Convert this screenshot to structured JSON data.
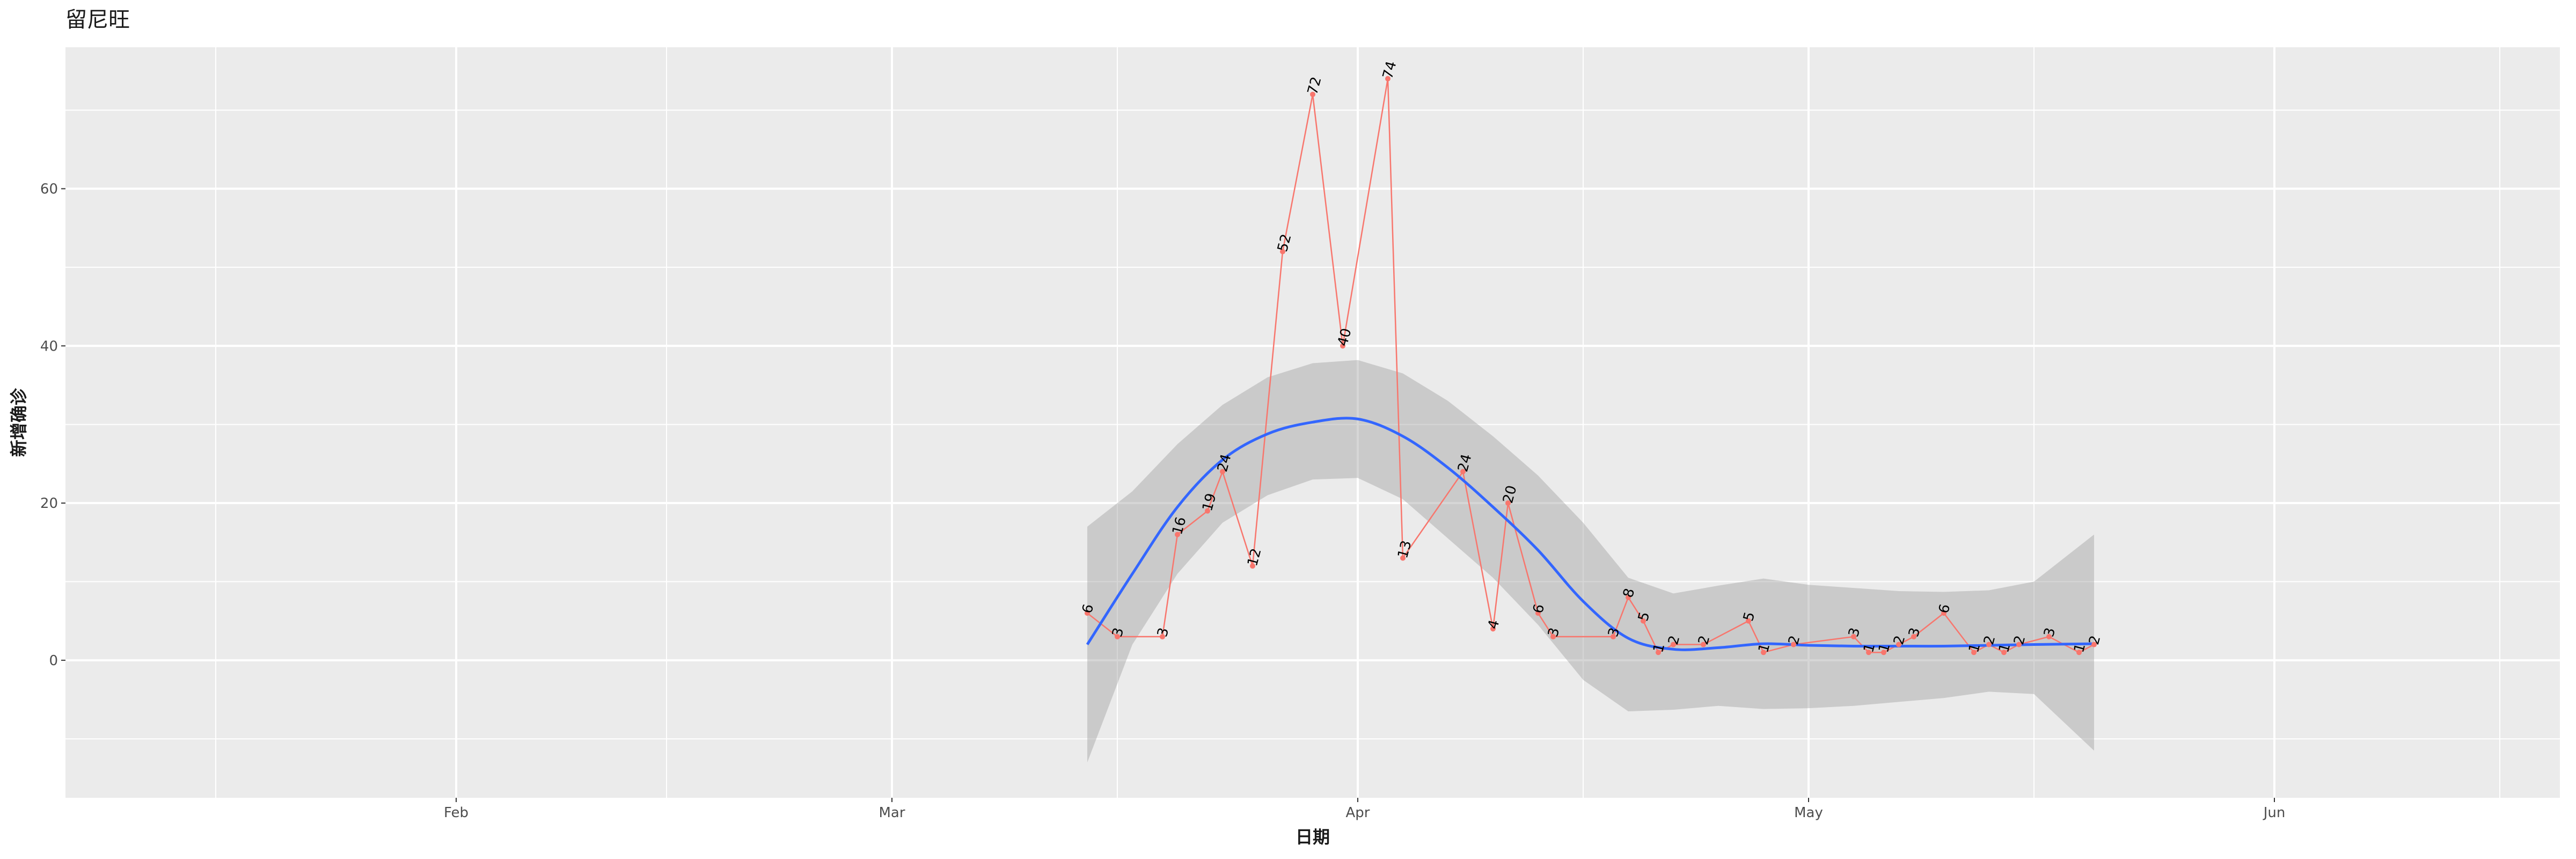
{
  "chart_data": {
    "type": "line",
    "title": "留尼旺",
    "xlabel": "日期",
    "ylabel": "新增确诊",
    "x_range": [
      "2020-01-06",
      "2020-06-20"
    ],
    "y_range": [
      -17.5,
      78
    ],
    "x_ticks": [
      {
        "date": "2020-02-01",
        "label": "Feb"
      },
      {
        "date": "2020-03-01",
        "label": "Mar"
      },
      {
        "date": "2020-04-01",
        "label": "Apr"
      },
      {
        "date": "2020-05-01",
        "label": "May"
      },
      {
        "date": "2020-06-01",
        "label": "Jun"
      }
    ],
    "x_minor_ticks": [
      "2020-01-16",
      "2020-02-15",
      "2020-03-16",
      "2020-04-16",
      "2020-05-16",
      "2020-06-16"
    ],
    "y_ticks": [
      0,
      20,
      40,
      60
    ],
    "y_minor_ticks": [
      -10,
      10,
      30,
      50,
      70
    ],
    "grid": true,
    "series": [
      {
        "color": "#F8766D",
        "points": [
          {
            "x": "2020-03-14",
            "y": 6
          },
          {
            "x": "2020-03-16",
            "y": 3
          },
          {
            "x": "2020-03-19",
            "y": 3
          },
          {
            "x": "2020-03-20",
            "y": 16
          },
          {
            "x": "2020-03-22",
            "y": 19
          },
          {
            "x": "2020-03-23",
            "y": 24
          },
          {
            "x": "2020-03-25",
            "y": 12
          },
          {
            "x": "2020-03-27",
            "y": 52
          },
          {
            "x": "2020-03-29",
            "y": 72
          },
          {
            "x": "2020-03-31",
            "y": 40
          },
          {
            "x": "2020-04-03",
            "y": 74
          },
          {
            "x": "2020-04-04",
            "y": 13
          },
          {
            "x": "2020-04-08",
            "y": 24
          },
          {
            "x": "2020-04-10",
            "y": 4
          },
          {
            "x": "2020-04-11",
            "y": 20
          },
          {
            "x": "2020-04-13",
            "y": 6
          },
          {
            "x": "2020-04-14",
            "y": 3
          },
          {
            "x": "2020-04-18",
            "y": 3
          },
          {
            "x": "2020-04-19",
            "y": 8
          },
          {
            "x": "2020-04-20",
            "y": 5
          },
          {
            "x": "2020-04-21",
            "y": 1
          },
          {
            "x": "2020-04-22",
            "y": 2
          },
          {
            "x": "2020-04-24",
            "y": 2
          },
          {
            "x": "2020-04-27",
            "y": 5
          },
          {
            "x": "2020-04-28",
            "y": 1
          },
          {
            "x": "2020-04-30",
            "y": 2
          },
          {
            "x": "2020-05-04",
            "y": 3
          },
          {
            "x": "2020-05-05",
            "y": 1
          },
          {
            "x": "2020-05-06",
            "y": 1
          },
          {
            "x": "2020-05-07",
            "y": 2
          },
          {
            "x": "2020-05-08",
            "y": 3
          },
          {
            "x": "2020-05-10",
            "y": 6
          },
          {
            "x": "2020-05-12",
            "y": 1
          },
          {
            "x": "2020-05-13",
            "y": 2
          },
          {
            "x": "2020-05-14",
            "y": 1
          },
          {
            "x": "2020-05-15",
            "y": 2
          },
          {
            "x": "2020-05-17",
            "y": 3
          },
          {
            "x": "2020-05-19",
            "y": 1
          },
          {
            "x": "2020-05-20",
            "y": 2
          }
        ]
      }
    ],
    "smooth": {
      "color": "#3366FF",
      "band_color": "#999999",
      "x": [
        "2020-03-14",
        "2020-03-17",
        "2020-03-20",
        "2020-03-23",
        "2020-03-26",
        "2020-03-29",
        "2020-04-01",
        "2020-04-04",
        "2020-04-07",
        "2020-04-10",
        "2020-04-13",
        "2020-04-16",
        "2020-04-19",
        "2020-04-22",
        "2020-04-25",
        "2020-04-28",
        "2020-05-01",
        "2020-05-04",
        "2020-05-07",
        "2020-05-10",
        "2020-05-13",
        "2020-05-16",
        "2020-05-20"
      ],
      "y": [
        2,
        11,
        19.5,
        25.5,
        28.8,
        30.3,
        30.7,
        28.5,
        24.5,
        19.5,
        14,
        7.5,
        2.8,
        1.4,
        1.6,
        2.1,
        1.9,
        1.8,
        1.8,
        1.8,
        1.9,
        2,
        2.1
      ],
      "lower": [
        -13,
        2,
        11,
        17.5,
        21,
        23,
        23.2,
        20.5,
        15.5,
        10.5,
        4.5,
        -2.5,
        -6.5,
        -6.3,
        -5.8,
        -6.2,
        -6.1,
        -5.8,
        -5.3,
        -4.8,
        -4,
        -4.3,
        -11.5
      ],
      "upper": [
        17,
        21.5,
        27.5,
        32.5,
        36,
        37.8,
        38.2,
        36.5,
        33,
        28.5,
        23.5,
        17.5,
        10.5,
        8.5,
        9.5,
        10.4,
        9.6,
        9.2,
        8.8,
        8.7,
        8.9,
        10,
        16
      ]
    }
  }
}
